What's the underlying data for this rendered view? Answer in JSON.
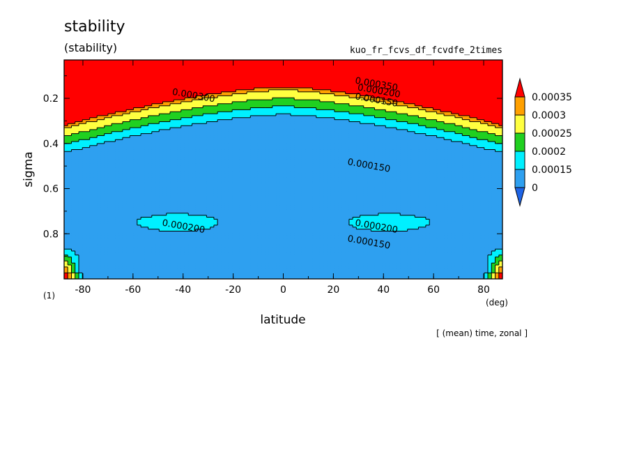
{
  "chart_data": {
    "type": "heatmap",
    "subtype": "filled-contour",
    "title": "stability",
    "subtitle": "(stability)",
    "run_name": "kuo_fr_fcvs_df_fcvdfe_2times",
    "xlabel": "latitude",
    "x_unit": "(deg)",
    "ylabel": "sigma",
    "y_unit": "(1)",
    "footer": "[ (mean) time, zonal ]",
    "xlim": [
      -87.5,
      87.5
    ],
    "ylim": [
      1.0,
      0.03
    ],
    "y_inverted": true,
    "x_ticks": [
      -80,
      -60,
      -40,
      -20,
      0,
      20,
      40,
      60,
      80
    ],
    "y_ticks": [
      0.2,
      0.4,
      0.6,
      0.8
    ],
    "y_tick_labels": [
      "0.2",
      "0.4",
      "0.6",
      "0.8"
    ],
    "levels": [
      0,
      0.00015,
      0.0002,
      0.00025,
      0.0003,
      0.00035
    ],
    "level_colors": [
      "#1e64e6",
      "#2ea0f0",
      "#00f0ff",
      "#20d020",
      "#ffff40",
      "#ffa000",
      "#ff0000"
    ],
    "colorbar": {
      "labels": [
        "0.00035",
        "0.0003",
        "0.00025",
        "0.0002",
        "0.00015",
        "0"
      ],
      "extend": "both"
    },
    "contour_labels": [
      {
        "text": "0.000300",
        "lat": -36,
        "sigma": 0.2
      },
      {
        "text": "0.000350",
        "lat": 37,
        "sigma": 0.15
      },
      {
        "text": "0.000200",
        "lat": 38,
        "sigma": 0.18
      },
      {
        "text": "0.000150",
        "lat": 37,
        "sigma": 0.22
      },
      {
        "text": "0.000150",
        "lat": 34,
        "sigma": 0.51
      },
      {
        "text": "0.000200",
        "lat": -40,
        "sigma": 0.78
      },
      {
        "text": "0.000200",
        "lat": 37,
        "sigma": 0.78
      },
      {
        "text": "0.000150",
        "lat": 34,
        "sigma": 0.85
      }
    ],
    "grid": false,
    "legend": "right-colorbar"
  }
}
